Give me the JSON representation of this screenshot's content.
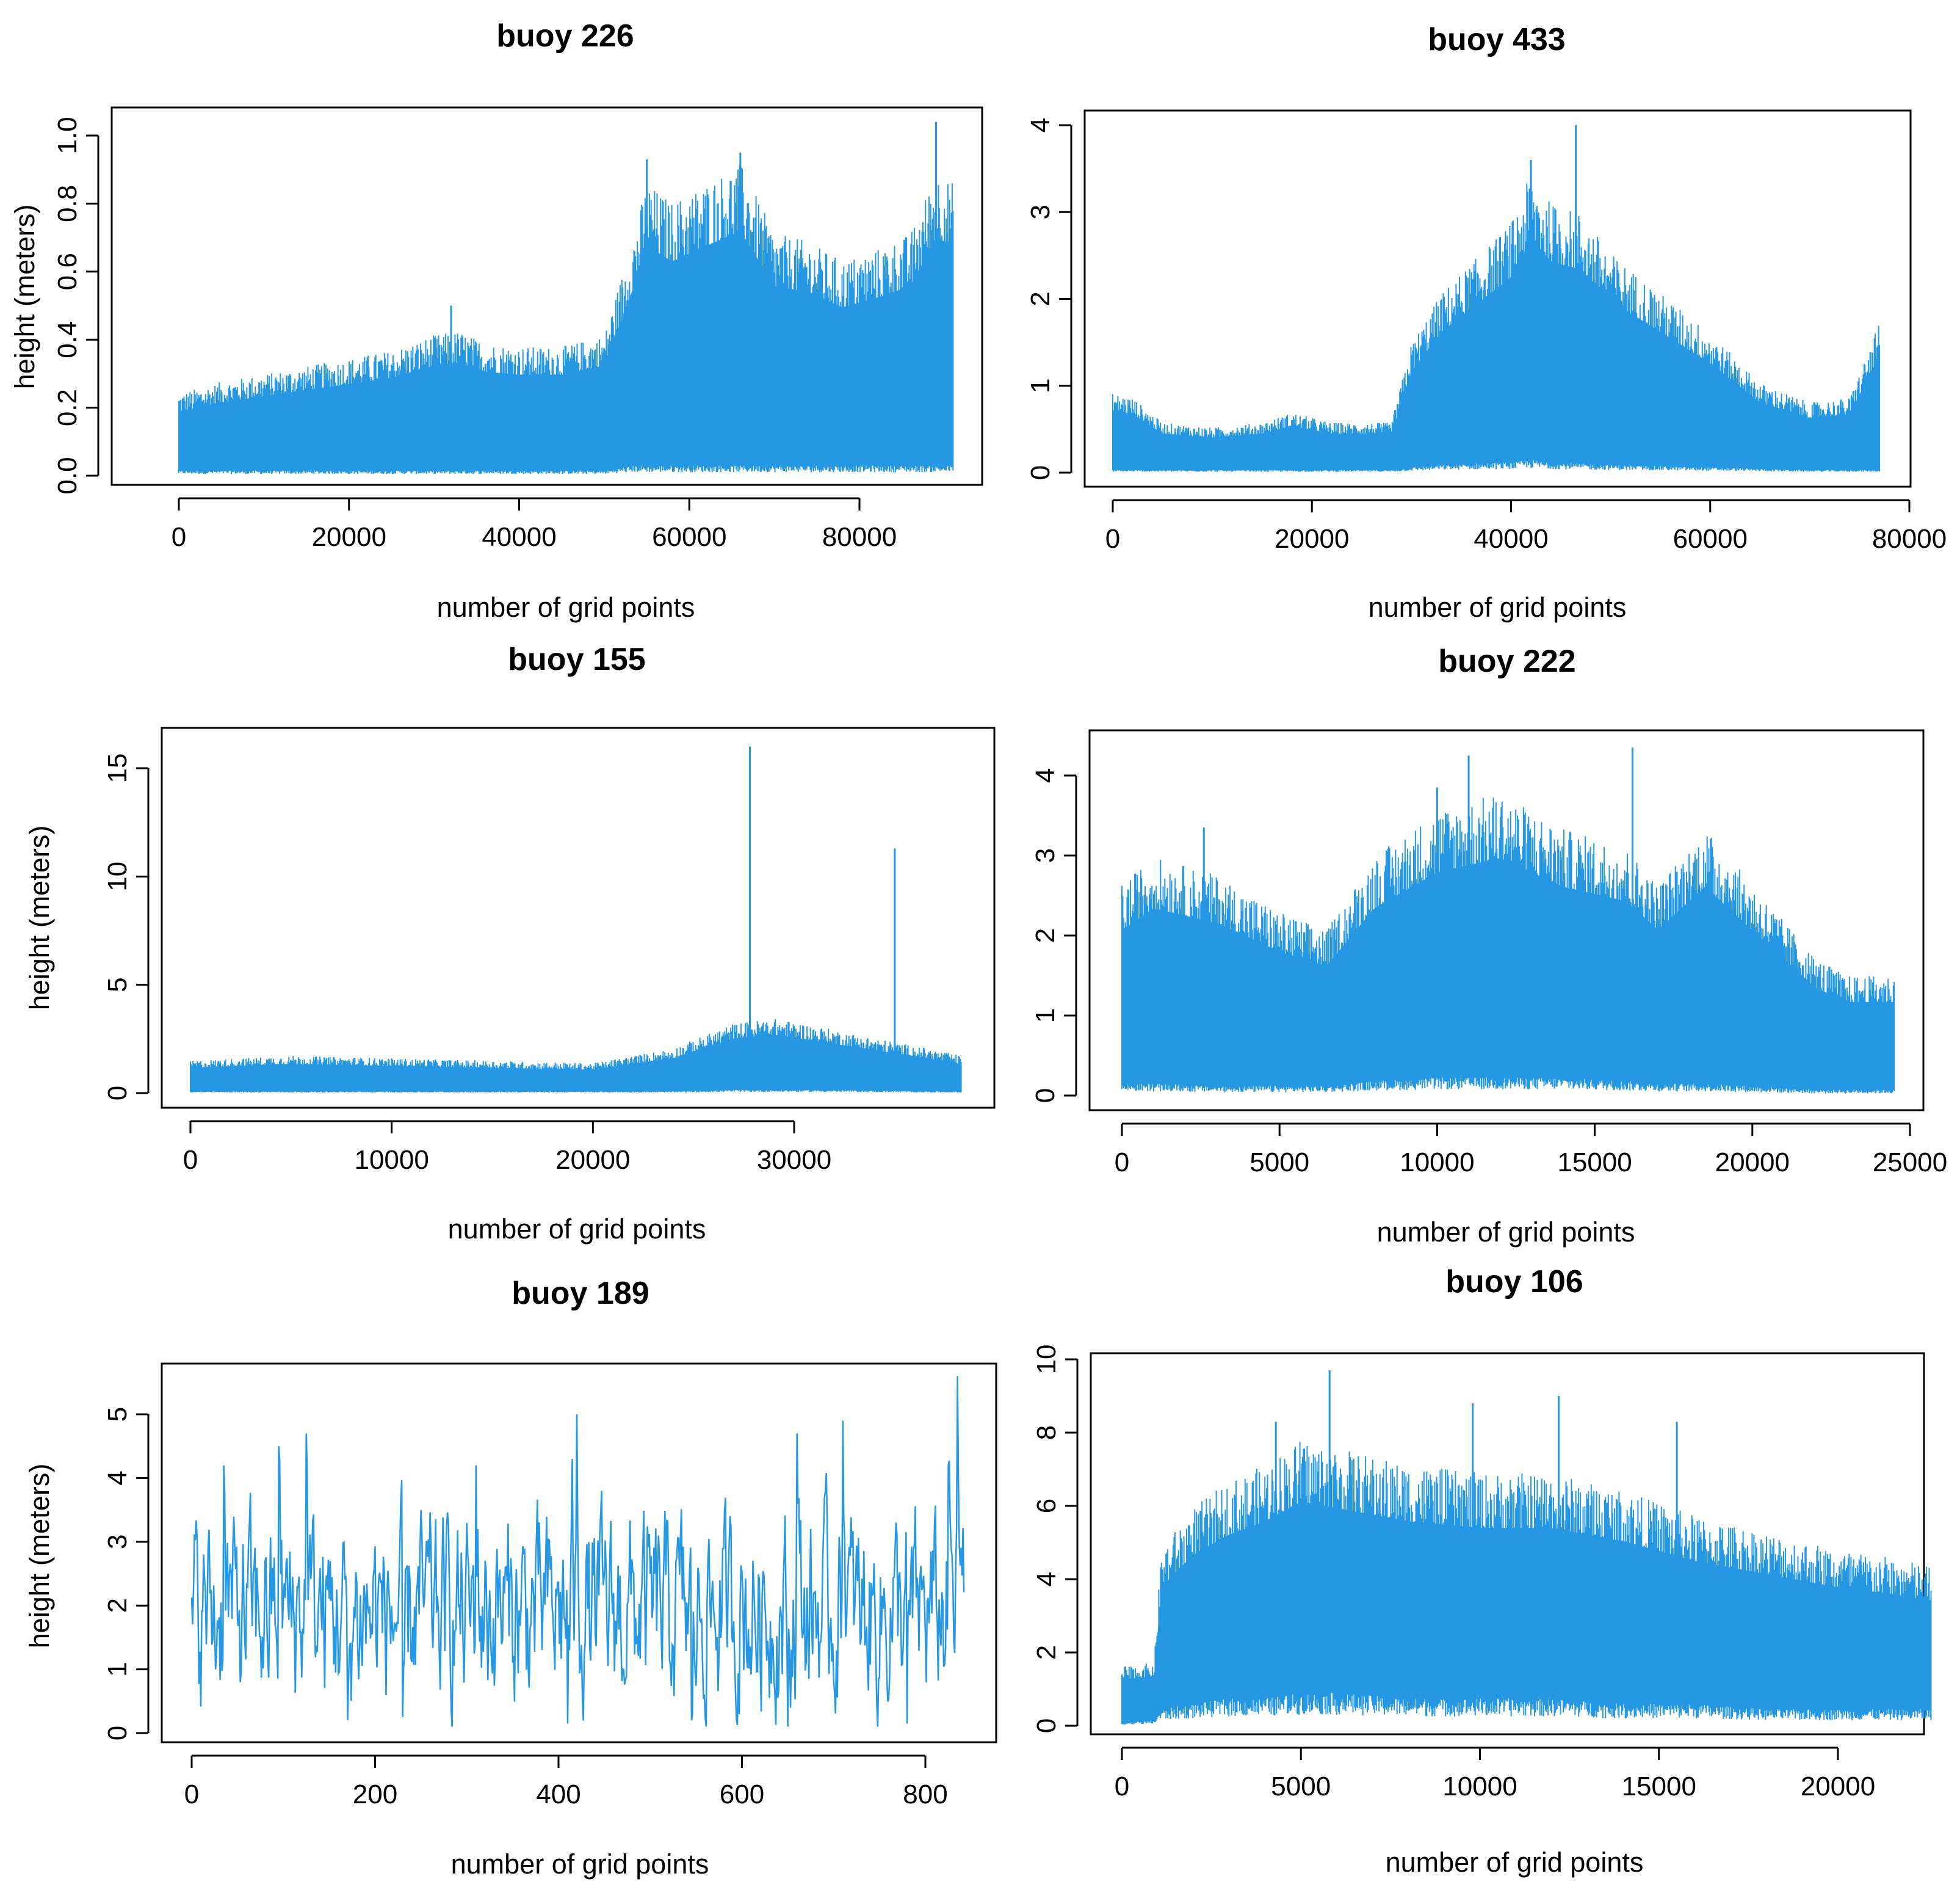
{
  "figure": {
    "series_color": "#2597E3",
    "panel_count": 6
  },
  "chart_data": [
    {
      "type": "line",
      "title": "buoy 226",
      "xlabel": "number of grid points",
      "ylabel": "height (meters)",
      "xlim": [
        0,
        91000
      ],
      "ylim": [
        0.0,
        1.05
      ],
      "xticks": [
        0,
        20000,
        40000,
        60000,
        80000
      ],
      "yticks": [
        "0.0",
        "0.2",
        "0.4",
        "0.6",
        "0.8",
        "1.0"
      ],
      "yticks_values": [
        0.0,
        0.2,
        0.4,
        0.6,
        0.8,
        1.0
      ],
      "envelope": {
        "x": [
          0,
          5000,
          10000,
          15000,
          20000,
          25000,
          30000,
          33000,
          36000,
          40000,
          45000,
          50000,
          53500,
          55000,
          58000,
          62000,
          66000,
          70000,
          74000,
          78000,
          82000,
          86000,
          89000,
          91000
        ],
        "upper": [
          0.21,
          0.24,
          0.26,
          0.28,
          0.3,
          0.32,
          0.36,
          0.37,
          0.34,
          0.33,
          0.33,
          0.36,
          0.62,
          0.75,
          0.7,
          0.75,
          0.8,
          0.62,
          0.6,
          0.55,
          0.58,
          0.62,
          0.78,
          0.75
        ],
        "lower": [
          0.01,
          0.01,
          0.01,
          0.01,
          0.01,
          0.01,
          0.01,
          0.01,
          0.01,
          0.01,
          0.01,
          0.01,
          0.02,
          0.02,
          0.02,
          0.02,
          0.02,
          0.02,
          0.02,
          0.02,
          0.02,
          0.02,
          0.02,
          0.02
        ]
      },
      "spikes": [
        [
          32000,
          0.5
        ],
        [
          55000,
          0.93
        ],
        [
          66000,
          0.95
        ],
        [
          89000,
          1.04
        ]
      ]
    },
    {
      "type": "line",
      "title": "buoy 433",
      "xlabel": "number of grid points",
      "ylabel": "",
      "xlim": [
        0,
        77000
      ],
      "ylim": [
        0,
        4.1
      ],
      "xticks": [
        0,
        20000,
        40000,
        60000,
        80000
      ],
      "yticks": [
        "0",
        "1",
        "2",
        "3",
        "4"
      ],
      "yticks_values": [
        0,
        1,
        2,
        3,
        4
      ],
      "envelope": {
        "x": [
          0,
          2000,
          5000,
          10000,
          15000,
          18000,
          22000,
          28000,
          30000,
          33000,
          36000,
          40000,
          42000,
          44000,
          47000,
          50000,
          55000,
          60000,
          65000,
          70000,
          74000,
          77000
        ],
        "upper": [
          0.8,
          0.75,
          0.5,
          0.45,
          0.5,
          0.6,
          0.5,
          0.5,
          1.3,
          1.8,
          2.1,
          2.5,
          3.0,
          2.7,
          2.6,
          2.2,
          1.8,
          1.4,
          0.9,
          0.7,
          0.75,
          1.5
        ],
        "lower": [
          0.02,
          0.02,
          0.02,
          0.02,
          0.02,
          0.02,
          0.02,
          0.02,
          0.04,
          0.06,
          0.07,
          0.08,
          0.1,
          0.08,
          0.07,
          0.06,
          0.05,
          0.04,
          0.03,
          0.02,
          0.02,
          0.02
        ]
      },
      "spikes": [
        [
          42000,
          3.6
        ],
        [
          46500,
          4.0
        ]
      ]
    },
    {
      "type": "line",
      "title": "buoy 155",
      "xlabel": "number of grid points",
      "ylabel": "height (meters)",
      "xlim": [
        0,
        38300
      ],
      "ylim": [
        0,
        16.2
      ],
      "xticks": [
        0,
        10000,
        20000,
        30000
      ],
      "yticks": [
        "0",
        "5",
        "10",
        "15"
      ],
      "yticks_values": [
        0,
        5,
        10,
        15
      ],
      "envelope": {
        "x": [
          0,
          5000,
          10000,
          15000,
          20000,
          24000,
          27000,
          29000,
          31000,
          34000,
          36000,
          38300
        ],
        "upper": [
          1.3,
          1.5,
          1.4,
          1.3,
          1.2,
          1.8,
          2.8,
          3.0,
          2.7,
          2.2,
          1.9,
          1.5
        ],
        "lower": [
          0.05,
          0.05,
          0.05,
          0.05,
          0.05,
          0.05,
          0.1,
          0.1,
          0.1,
          0.08,
          0.06,
          0.05
        ]
      },
      "spikes": [
        [
          27800,
          16.0
        ],
        [
          35000,
          11.3
        ]
      ]
    },
    {
      "type": "line",
      "title": "buoy 222",
      "xlabel": "number of grid points",
      "ylabel": "",
      "xlim": [
        0,
        24500
      ],
      "ylim": [
        0,
        4.4
      ],
      "xticks": [
        0,
        5000,
        10000,
        15000,
        20000,
        25000
      ],
      "yticks": [
        "0",
        "1",
        "2",
        "3",
        "4"
      ],
      "yticks_values": [
        0,
        1,
        2,
        3,
        4
      ],
      "envelope": {
        "x": [
          0,
          1000,
          3000,
          5000,
          6500,
          8000,
          10000,
          12000,
          14000,
          16000,
          17000,
          18500,
          20000,
          22000,
          23000,
          24500
        ],
        "upper": [
          2.3,
          2.6,
          2.4,
          2.0,
          1.8,
          2.6,
          3.1,
          3.3,
          2.9,
          2.7,
          2.3,
          2.9,
          2.3,
          1.5,
          1.3,
          1.3
        ],
        "lower": [
          0.1,
          0.1,
          0.08,
          0.08,
          0.08,
          0.12,
          0.15,
          0.15,
          0.15,
          0.12,
          0.1,
          0.1,
          0.08,
          0.05,
          0.05,
          0.05
        ]
      },
      "spikes": [
        [
          11000,
          4.25
        ],
        [
          16200,
          4.35
        ],
        [
          10000,
          3.85
        ],
        [
          2600,
          3.35
        ]
      ]
    },
    {
      "type": "line",
      "title": "buoy 189",
      "xlabel": "number of grid points",
      "ylabel": "height (meters)",
      "xlim": [
        0,
        842
      ],
      "ylim": [
        0,
        5.6
      ],
      "xticks": [
        0,
        200,
        400,
        600,
        800
      ],
      "yticks": [
        "0",
        "1",
        "2",
        "3",
        "4",
        "5"
      ],
      "yticks_values": [
        0,
        1,
        2,
        3,
        4,
        5
      ],
      "mean": 1.9,
      "peaks": [
        [
          35,
          4.2
        ],
        [
          95,
          4.5
        ],
        [
          125,
          4.7
        ],
        [
          310,
          4.2
        ],
        [
          420,
          5.0
        ],
        [
          415,
          4.3
        ],
        [
          660,
          4.7
        ],
        [
          710,
          4.9
        ],
        [
          835,
          5.6
        ],
        [
          825,
          4.2
        ]
      ],
      "troughs": [
        [
          170,
          0.2
        ],
        [
          410,
          0.15
        ],
        [
          650,
          0.1
        ],
        [
          780,
          0.15
        ],
        [
          230,
          0.25
        ],
        [
          545,
          0.2
        ]
      ]
    },
    {
      "type": "line",
      "title": "buoy 106",
      "xlabel": "number of grid points",
      "ylabel": "",
      "xlim": [
        0,
        22600
      ],
      "ylim": [
        0,
        9.8
      ],
      "xticks": [
        0,
        5000,
        10000,
        15000,
        20000
      ],
      "yticks": [
        "0",
        "2",
        "4",
        "6",
        "8",
        "10"
      ],
      "yticks_values": [
        0,
        2,
        4,
        6,
        8,
        10
      ],
      "envelope": {
        "x": [
          0,
          900,
          1100,
          2000,
          3000,
          4000,
          5000,
          6000,
          8000,
          10000,
          12000,
          14000,
          16000,
          18000,
          20000,
          21500,
          22600
        ],
        "upper": [
          1.4,
          1.5,
          4.2,
          5.2,
          5.8,
          6.2,
          6.8,
          6.6,
          6.2,
          6.0,
          6.0,
          5.6,
          5.0,
          4.6,
          4.2,
          4.0,
          3.8
        ],
        "lower": [
          0.05,
          0.1,
          0.3,
          0.4,
          0.5,
          0.5,
          0.6,
          0.6,
          0.5,
          0.5,
          0.5,
          0.4,
          0.4,
          0.3,
          0.3,
          0.3,
          0.3
        ]
      },
      "spikes": [
        [
          5800,
          9.7
        ],
        [
          12200,
          9.0
        ],
        [
          4300,
          8.3
        ],
        [
          9800,
          8.8
        ],
        [
          15500,
          8.3
        ]
      ]
    }
  ]
}
